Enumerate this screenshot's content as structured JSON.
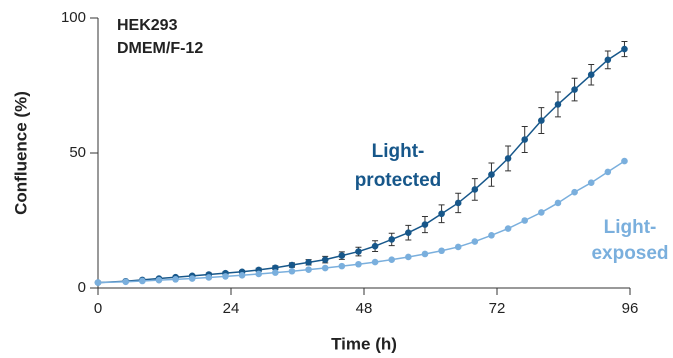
{
  "chart_data": {
    "type": "line",
    "x_label": "Time (h)",
    "y_label": "Confluence (%)",
    "annotations": [
      "HEK293",
      "DMEM/F-12"
    ],
    "xlim": [
      0,
      96
    ],
    "ylim": [
      0,
      100
    ],
    "xticks": [
      0,
      24,
      48,
      72,
      96
    ],
    "yticks": [
      0,
      50,
      100
    ],
    "x": [
      0,
      5,
      8,
      11,
      14,
      17,
      20,
      23,
      26,
      29,
      32,
      35,
      38,
      41,
      44,
      47,
      50,
      53,
      56,
      59,
      62,
      65,
      68,
      71,
      74,
      77,
      80,
      83,
      86,
      89,
      92,
      95
    ],
    "series": [
      {
        "label_lines": [
          "Light-",
          "protected"
        ],
        "color": "#17578a",
        "values": [
          2,
          2.5,
          3,
          3.5,
          4,
          4.5,
          5,
          5.5,
          6,
          6.7,
          7.5,
          8.5,
          9.5,
          10.5,
          12,
          13.5,
          15.5,
          18,
          20.5,
          23.5,
          27.5,
          31.5,
          36.5,
          42,
          48,
          55,
          62,
          68,
          73.5,
          79,
          84.5,
          88.5
        ],
        "errors": [
          0.3,
          0.3,
          0.3,
          0.4,
          0.4,
          0.4,
          0.5,
          0.5,
          0.5,
          0.6,
          0.7,
          0.8,
          1,
          1.2,
          1.4,
          1.6,
          2,
          2.3,
          2.7,
          3,
          3.3,
          3.6,
          4,
          4.3,
          4.6,
          4.8,
          4.8,
          4.6,
          4.2,
          3.8,
          3.3,
          2.8
        ]
      },
      {
        "label_lines": [
          "Light-",
          "exposed"
        ],
        "color": "#7aafdd",
        "values": [
          2,
          2.3,
          2.6,
          2.9,
          3.2,
          3.5,
          3.9,
          4.3,
          4.7,
          5.2,
          5.7,
          6.2,
          6.8,
          7.4,
          8.1,
          8.8,
          9.6,
          10.5,
          11.5,
          12.6,
          13.8,
          15.2,
          17.2,
          19.5,
          22,
          25,
          28,
          31.5,
          35.5,
          39,
          43,
          47
        ]
      },
      {
        "errors_note_unused": null
      }
    ]
  }
}
